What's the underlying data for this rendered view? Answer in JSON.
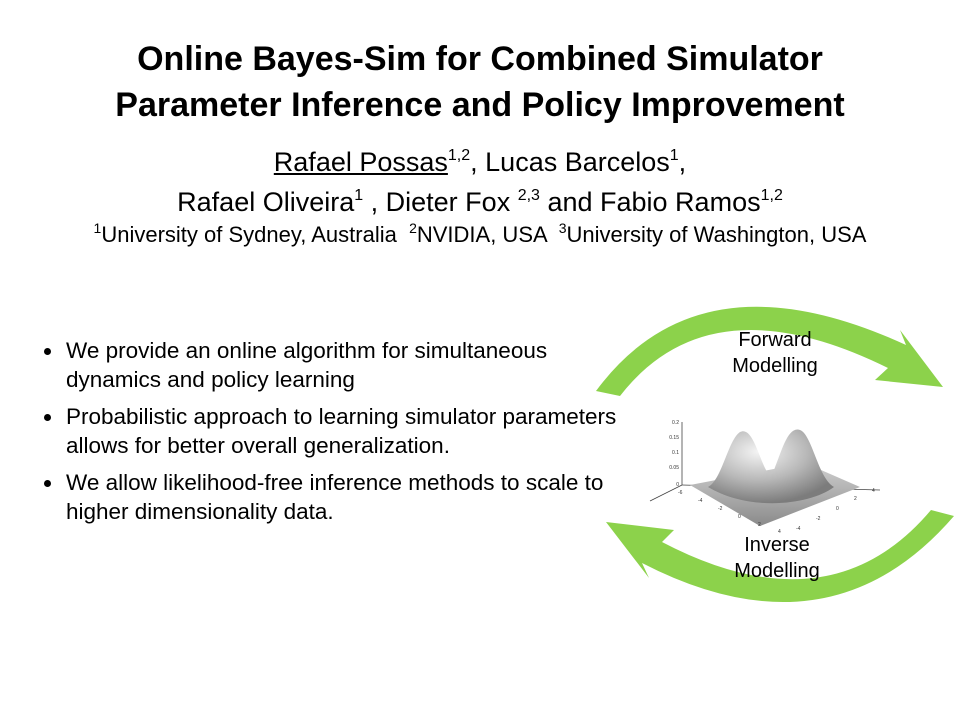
{
  "title": {
    "line1": "Online Bayes-Sim for Combined Simulator",
    "line2": "Parameter Inference and Policy Improvement"
  },
  "authors": {
    "a1": {
      "name": "Rafael Possas",
      "sup": "1,2"
    },
    "sep1": ", ",
    "a2": {
      "name": "Lucas Barcelos",
      "sup": "1"
    },
    "sep2": ",",
    "a3": {
      "name": "Rafael Oliveira",
      "sup": "1"
    },
    "sep3": " , ",
    "a4": {
      "name": "Dieter Fox ",
      "sup": "2,3"
    },
    "sep4": " and ",
    "a5": {
      "name": "Fabio Ramos",
      "sup": "1,2"
    }
  },
  "affiliations": [
    {
      "sup": "1",
      "text": "University of Sydney, Australia  "
    },
    {
      "sup": "2",
      "text": "NVIDIA, USA  "
    },
    {
      "sup": "3",
      "text": "University of Washington, USA"
    }
  ],
  "bullets": [
    "We provide an online algorithm for simultaneous dynamics and policy learning",
    "Probabilistic approach to learning simulator parameters allows for better overall generalization.",
    "We allow likelihood-free inference methods to scale to higher dimensionality data."
  ],
  "diagram": {
    "top_label_1": "Forward",
    "top_label_2": "Modelling",
    "bottom_label_1": "Inverse",
    "bottom_label_2": "Modelling",
    "arrow_color": "#8CD24B",
    "plot_y_ticks": [
      "0.2",
      "0.15",
      "0.1",
      "0.05",
      "0"
    ],
    "plot_left_ticks": [
      "-6",
      "-4",
      "-2",
      "0",
      "2",
      "4"
    ],
    "plot_right_ticks": [
      "-4",
      "-2",
      "0",
      "2",
      "4"
    ]
  }
}
